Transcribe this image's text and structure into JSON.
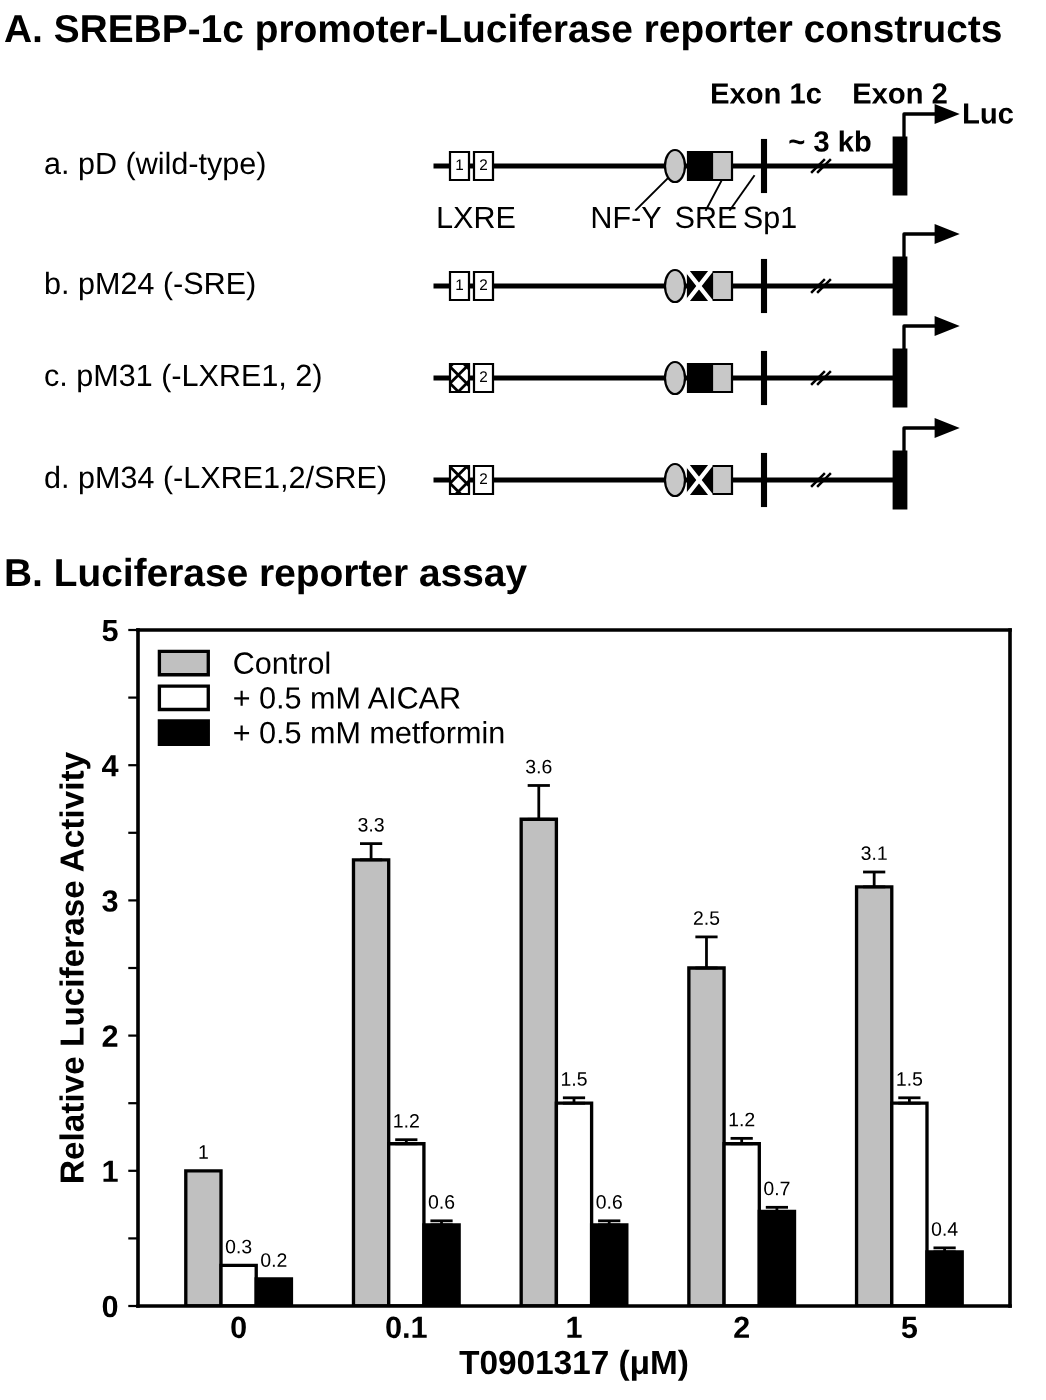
{
  "chart_data": [
    {
      "type": "other",
      "title": "A. SREBP-1c promoter-Luciferase reporter constructs",
      "annotations": [
        "a. pD (wild-type)",
        "b. pM24 (-SRE)",
        "c. pM31 (-LXRE1, 2)",
        "d. pM34 (-LXRE1,2/SRE)",
        "LXRE",
        "NF-Y",
        "SRE",
        "Sp1",
        "Exon 1c",
        "Exon 2",
        "~ 3 kb",
        "Luc",
        "1",
        "2"
      ]
    },
    {
      "type": "bar",
      "title": "B. Luciferase reporter assay",
      "xlabel": "T0901317 (μM)",
      "ylabel": "Relative Luciferase Activity",
      "categories": [
        "0",
        "0.1",
        "1",
        "2",
        "5"
      ],
      "series": [
        {
          "name": "Control",
          "color": "#c0c0c0",
          "values": [
            1,
            3.3,
            3.6,
            2.5,
            3.1
          ],
          "errors": [
            null,
            0.12,
            0.25,
            0.23,
            0.11
          ]
        },
        {
          "name": "+ 0.5 mM AICAR",
          "color": "#ffffff",
          "values": [
            0.3,
            1.2,
            1.5,
            1.2,
            1.5
          ],
          "errors": [
            null,
            0.03,
            0.04,
            0.04,
            0.04
          ]
        },
        {
          "name": "+ 0.5 mM metformin",
          "color": "#000000",
          "values": [
            0.2,
            0.6,
            0.6,
            0.7,
            0.4
          ],
          "errors": [
            null,
            0.03,
            0.03,
            0.03,
            0.03
          ]
        }
      ],
      "ylim": [
        0,
        5
      ],
      "yticks": [
        0,
        {
          "value": 0.5,
          "label": null
        },
        1,
        {
          "value": 1.5,
          "label": null
        },
        2,
        {
          "value": 2.5,
          "label": null
        },
        3,
        {
          "value": 3.5,
          "label": null
        },
        4,
        {
          "value": 4.5,
          "label": null
        },
        5
      ],
      "data_labels": true,
      "legend": "top left",
      "grid": false
    }
  ]
}
